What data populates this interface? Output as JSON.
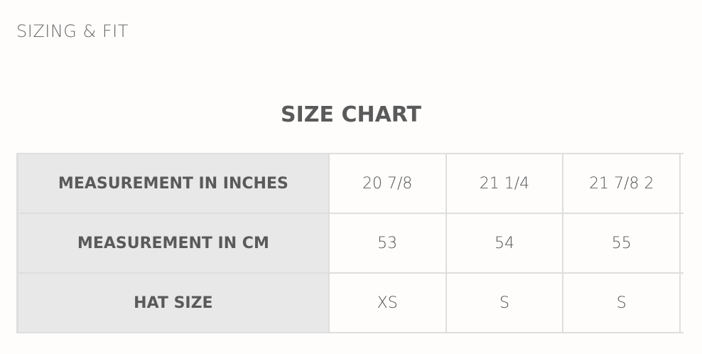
{
  "section_title": "SIZING & FIT",
  "chart_title": "SIZE CHART",
  "rows": [
    {
      "label": "MEASUREMENT IN INCHES",
      "values": [
        "20 7/8",
        "21 1/4",
        "21 7/8 2",
        ""
      ]
    },
    {
      "label": "MEASUREMENT IN CM",
      "values": [
        "53",
        "54",
        "55",
        ""
      ]
    },
    {
      "label": "HAT SIZE",
      "values": [
        "XS",
        "S",
        "S",
        ""
      ]
    }
  ]
}
